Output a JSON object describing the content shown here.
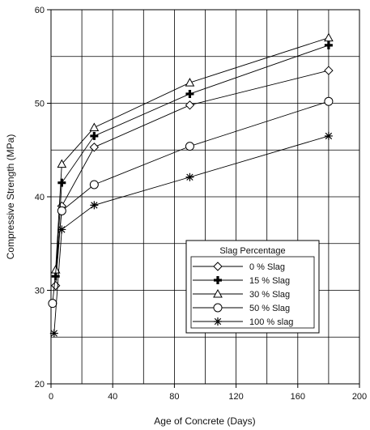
{
  "chart_data": {
    "type": "line",
    "xlabel": "Age of Concrete (Days)",
    "ylabel": "Compressive Strength (MPa)",
    "xlim": [
      0,
      200
    ],
    "ylim": [
      20,
      60
    ],
    "xticks": [
      0,
      40,
      80,
      120,
      160,
      200
    ],
    "yticks": [
      20,
      30,
      40,
      50,
      60
    ],
    "grid": true,
    "legend": {
      "title": "Slag Percentage",
      "placement": "bottom-right"
    },
    "series": [
      {
        "name": "0 % Slag",
        "marker": "diamond",
        "x": [
          3,
          7,
          28,
          90,
          180
        ],
        "y": [
          30.5,
          39.0,
          45.3,
          49.8,
          53.5
        ]
      },
      {
        "name": "15 % Slag",
        "marker": "plus",
        "x": [
          3,
          7,
          28,
          90,
          180
        ],
        "y": [
          31.5,
          41.5,
          46.5,
          51.0,
          56.2
        ]
      },
      {
        "name": "30 % Slag",
        "marker": "triangle",
        "x": [
          3,
          7,
          28,
          90,
          180
        ],
        "y": [
          32.2,
          43.5,
          47.4,
          52.2,
          57.0
        ]
      },
      {
        "name": "50 % Slag",
        "marker": "circle",
        "x": [
          1,
          7,
          28,
          90,
          180
        ],
        "y": [
          28.6,
          38.5,
          41.3,
          45.4,
          50.2
        ]
      },
      {
        "name": "100 % slag",
        "marker": "asterisk",
        "x": [
          2,
          7,
          28,
          90,
          180
        ],
        "y": [
          25.4,
          36.5,
          39.1,
          42.1,
          46.5
        ]
      }
    ]
  }
}
